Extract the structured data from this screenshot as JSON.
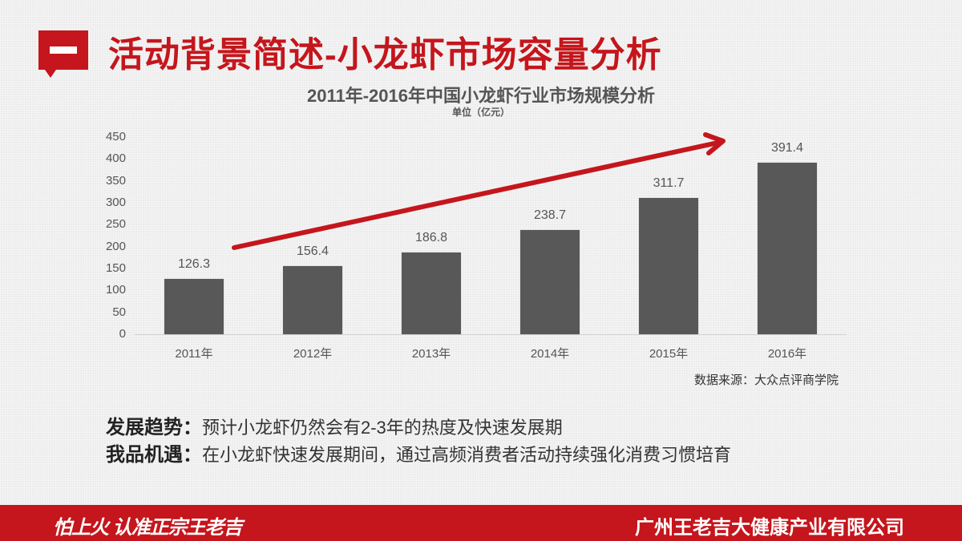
{
  "header": {
    "badge_symbol": "一",
    "title": "活动背景简述-小龙虾市场容量分析"
  },
  "chart_data": {
    "type": "bar",
    "title": "2011年-2016年中国小龙虾行业市场规模分析",
    "subtitle": "单位（亿元）",
    "xlabel": "",
    "ylabel": "单位（亿元）",
    "categories": [
      "2011年",
      "2012年",
      "2013年",
      "2014年",
      "2015年",
      "2016年"
    ],
    "values": [
      126.3,
      156.4,
      186.8,
      238.7,
      311.7,
      391.4
    ],
    "value_labels": [
      "126.3",
      "156.4",
      "186.8",
      "238.7",
      "311.7",
      "391.4"
    ],
    "ylim": [
      0,
      450
    ],
    "yticks": [
      "450",
      "400",
      "350",
      "300",
      "250",
      "200",
      "150",
      "100",
      "50",
      "0"
    ],
    "grid": false,
    "bar_color": "#585858",
    "annotations": [
      {
        "type": "trend-arrow",
        "color": "#c4161c",
        "from": [
          2011.3,
          200
        ],
        "to": [
          2016,
          445
        ]
      }
    ],
    "source": "数据来源：大众点评商学院"
  },
  "notes": [
    {
      "key": "发展趋势：",
      "text": "预计小龙虾仍然会有2-3年的热度及快速发展期"
    },
    {
      "key": "我品机遇：",
      "text": "在小龙虾快速发展期间，通过高频消费者活动持续强化消费习惯培育"
    }
  ],
  "footer": {
    "slogan": "怕上火 认准正宗王老吉",
    "company": "广州王老吉大健康产业有限公司",
    "color": "#c4161c"
  },
  "colors": {
    "accent": "#c4161c",
    "bar": "#585858",
    "text": "#555555"
  }
}
